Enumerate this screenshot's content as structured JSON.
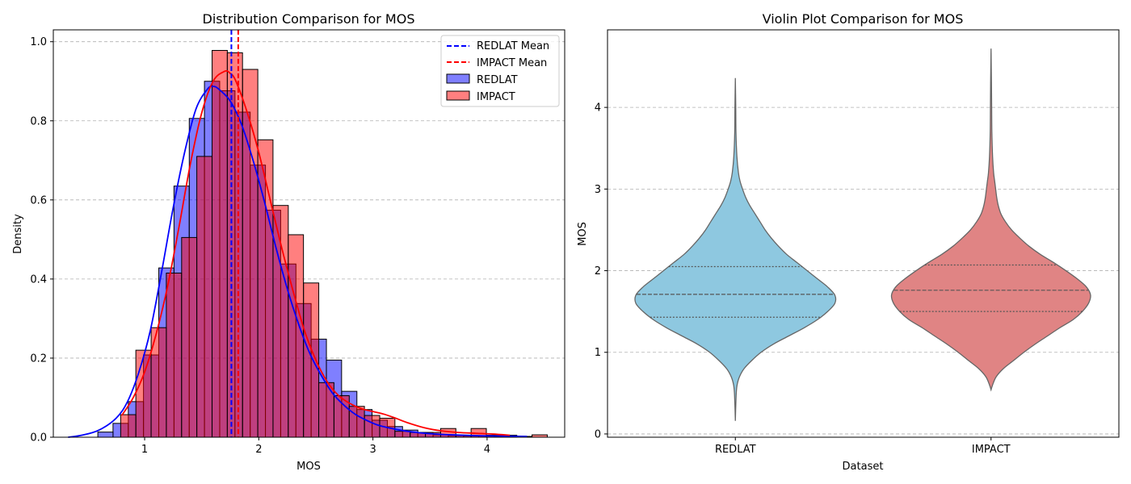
{
  "chart_data": [
    {
      "type": "histogram",
      "title": "Distribution Comparison for MOS",
      "xlabel": "MOS",
      "ylabel": "Density",
      "xlim": [
        0.2,
        4.68
      ],
      "ylim": [
        0,
        1.03
      ],
      "xticks": [
        1,
        2,
        3,
        4
      ],
      "yticks": [
        0.0,
        0.2,
        0.4,
        0.6,
        0.8,
        1.0
      ],
      "grid": "y-dashed",
      "legend_position": "top-right",
      "legend": [
        "REDLAT Mean",
        "IMPACT Mean",
        "REDLAT",
        "IMPACT"
      ],
      "series": [
        {
          "name": "REDLAT",
          "color": "#0000ff",
          "bin_width": 0.1335,
          "bins": [
            {
              "x0": 0.59,
              "density": 0.013
            },
            {
              "x0": 0.723,
              "density": 0.035
            },
            {
              "x0": 0.857,
              "density": 0.09
            },
            {
              "x0": 0.99,
              "density": 0.208
            },
            {
              "x0": 1.124,
              "density": 0.428
            },
            {
              "x0": 1.257,
              "density": 0.635
            },
            {
              "x0": 1.391,
              "density": 0.806
            },
            {
              "x0": 1.524,
              "density": 0.9
            },
            {
              "x0": 1.658,
              "density": 0.876
            },
            {
              "x0": 1.791,
              "density": 0.822
            },
            {
              "x0": 1.925,
              "density": 0.688
            },
            {
              "x0": 2.058,
              "density": 0.574
            },
            {
              "x0": 2.192,
              "density": 0.438
            },
            {
              "x0": 2.325,
              "density": 0.338
            },
            {
              "x0": 2.459,
              "density": 0.248
            },
            {
              "x0": 2.592,
              "density": 0.195
            },
            {
              "x0": 2.726,
              "density": 0.116
            },
            {
              "x0": 2.859,
              "density": 0.07
            },
            {
              "x0": 2.993,
              "density": 0.043
            },
            {
              "x0": 3.126,
              "density": 0.027
            },
            {
              "x0": 3.26,
              "density": 0.018
            },
            {
              "x0": 3.393,
              "density": 0.012
            },
            {
              "x0": 3.527,
              "density": 0.006
            },
            {
              "x0": 3.66,
              "density": 0.004
            },
            {
              "x0": 3.794,
              "density": 0.003
            },
            {
              "x0": 3.927,
              "density": 0.003
            },
            {
              "x0": 4.061,
              "density": 0.002
            },
            {
              "x0": 4.194,
              "density": 0.002
            }
          ],
          "kde": {
            "x": [
              0.33,
              0.45,
              0.6,
              0.75,
              0.85,
              0.95,
              1.05,
              1.15,
              1.25,
              1.35,
              1.45,
              1.55,
              1.6,
              1.65,
              1.75,
              1.85,
              1.95,
              2.05,
              2.15,
              2.25,
              2.35,
              2.45,
              2.55,
              2.65,
              2.75,
              2.85,
              2.95,
              3.05,
              3.2,
              3.35,
              3.5,
              3.7,
              3.9,
              4.1,
              4.35
            ],
            "y": [
              0.0,
              0.005,
              0.018,
              0.048,
              0.09,
              0.165,
              0.27,
              0.42,
              0.58,
              0.72,
              0.83,
              0.88,
              0.887,
              0.88,
              0.85,
              0.79,
              0.7,
              0.595,
              0.48,
              0.375,
              0.285,
              0.21,
              0.155,
              0.11,
              0.08,
              0.057,
              0.042,
              0.03,
              0.02,
              0.013,
              0.009,
              0.006,
              0.004,
              0.003,
              0.002
            ]
          },
          "mean": 1.76
        },
        {
          "name": "IMPACT",
          "color": "#ff0000",
          "bin_width": 0.1335,
          "bins": [
            {
              "x0": 0.79,
              "density": 0.057
            },
            {
              "x0": 0.923,
              "density": 0.22
            },
            {
              "x0": 1.057,
              "density": 0.277
            },
            {
              "x0": 1.19,
              "density": 0.415
            },
            {
              "x0": 1.324,
              "density": 0.505
            },
            {
              "x0": 1.457,
              "density": 0.71
            },
            {
              "x0": 1.591,
              "density": 0.978
            },
            {
              "x0": 1.724,
              "density": 0.972
            },
            {
              "x0": 1.858,
              "density": 0.93
            },
            {
              "x0": 1.991,
              "density": 0.752
            },
            {
              "x0": 2.125,
              "density": 0.586
            },
            {
              "x0": 2.258,
              "density": 0.512
            },
            {
              "x0": 2.392,
              "density": 0.39
            },
            {
              "x0": 2.525,
              "density": 0.138
            },
            {
              "x0": 2.659,
              "density": 0.105
            },
            {
              "x0": 2.792,
              "density": 0.078
            },
            {
              "x0": 2.926,
              "density": 0.055
            },
            {
              "x0": 3.059,
              "density": 0.048
            },
            {
              "x0": 3.193,
              "density": 0.015
            },
            {
              "x0": 3.326,
              "density": 0.012
            },
            {
              "x0": 3.46,
              "density": 0.012
            },
            {
              "x0": 3.593,
              "density": 0.022
            },
            {
              "x0": 3.727,
              "density": 0.005
            },
            {
              "x0": 3.86,
              "density": 0.022
            },
            {
              "x0": 3.994,
              "density": 0.005
            },
            {
              "x0": 4.127,
              "density": 0.005
            },
            {
              "x0": 4.261,
              "density": 0.002
            },
            {
              "x0": 4.394,
              "density": 0.006
            }
          ],
          "kde": {
            "x": [
              0.8,
              0.9,
              1.0,
              1.1,
              1.2,
              1.3,
              1.4,
              1.5,
              1.6,
              1.7,
              1.75,
              1.8,
              1.9,
              2.0,
              2.1,
              2.2,
              2.3,
              2.4,
              2.5,
              2.6,
              2.7,
              2.8,
              2.9,
              3.0,
              3.1,
              3.2,
              3.3,
              3.45,
              3.6,
              3.75,
              3.9,
              4.05,
              4.2
            ],
            "y": [
              0.055,
              0.1,
              0.165,
              0.26,
              0.38,
              0.53,
              0.69,
              0.82,
              0.9,
              0.925,
              0.92,
              0.9,
              0.82,
              0.72,
              0.6,
              0.48,
              0.37,
              0.27,
              0.195,
              0.14,
              0.105,
              0.085,
              0.072,
              0.065,
              0.058,
              0.048,
              0.037,
              0.024,
              0.016,
              0.012,
              0.01,
              0.008,
              0.005
            ]
          },
          "mean": 1.82
        }
      ]
    },
    {
      "type": "violin",
      "title": "Violin Plot Comparison for MOS",
      "xlabel": "Dataset",
      "ylabel": "MOS",
      "ylim": [
        -0.04,
        4.95
      ],
      "yticks": [
        0,
        1,
        2,
        3,
        4
      ],
      "categories": [
        "REDLAT",
        "IMPACT"
      ],
      "grid": "y-dashed",
      "violins": [
        {
          "name": "REDLAT",
          "color": "#8ec8e0",
          "quartiles": [
            1.43,
            1.71,
            2.05
          ],
          "profile": [
            [
              0.16,
              0.0
            ],
            [
              0.3,
              0.003
            ],
            [
              0.5,
              0.009
            ],
            [
              0.6,
              0.017
            ],
            [
              0.7,
              0.04
            ],
            [
              0.8,
              0.085
            ],
            [
              0.9,
              0.16
            ],
            [
              1.0,
              0.25
            ],
            [
              1.1,
              0.37
            ],
            [
              1.2,
              0.52
            ],
            [
              1.3,
              0.67
            ],
            [
              1.4,
              0.8
            ],
            [
              1.5,
              0.9
            ],
            [
              1.6,
              0.97
            ],
            [
              1.7,
              0.97
            ],
            [
              1.8,
              0.9
            ],
            [
              1.9,
              0.8
            ],
            [
              2.0,
              0.7
            ],
            [
              2.1,
              0.6
            ],
            [
              2.2,
              0.5
            ],
            [
              2.3,
              0.42
            ],
            [
              2.4,
              0.35
            ],
            [
              2.5,
              0.29
            ],
            [
              2.6,
              0.24
            ],
            [
              2.7,
              0.19
            ],
            [
              2.8,
              0.14
            ],
            [
              2.9,
              0.1
            ],
            [
              3.0,
              0.07
            ],
            [
              3.1,
              0.045
            ],
            [
              3.2,
              0.03
            ],
            [
              3.4,
              0.015
            ],
            [
              3.7,
              0.006
            ],
            [
              4.0,
              0.004
            ],
            [
              4.36,
              0.0
            ]
          ]
        },
        {
          "name": "IMPACT",
          "color": "#e08484",
          "quartiles": [
            1.5,
            1.76,
            2.07
          ],
          "profile": [
            [
              0.54,
              0.0
            ],
            [
              0.6,
              0.015
            ],
            [
              0.7,
              0.05
            ],
            [
              0.8,
              0.12
            ],
            [
              0.9,
              0.22
            ],
            [
              1.0,
              0.32
            ],
            [
              1.1,
              0.43
            ],
            [
              1.2,
              0.55
            ],
            [
              1.3,
              0.67
            ],
            [
              1.4,
              0.8
            ],
            [
              1.5,
              0.89
            ],
            [
              1.6,
              0.95
            ],
            [
              1.7,
              0.97
            ],
            [
              1.8,
              0.93
            ],
            [
              1.9,
              0.84
            ],
            [
              2.0,
              0.73
            ],
            [
              2.1,
              0.61
            ],
            [
              2.2,
              0.48
            ],
            [
              2.3,
              0.37
            ],
            [
              2.4,
              0.28
            ],
            [
              2.5,
              0.2
            ],
            [
              2.6,
              0.14
            ],
            [
              2.7,
              0.095
            ],
            [
              2.8,
              0.07
            ],
            [
              2.9,
              0.055
            ],
            [
              3.0,
              0.045
            ],
            [
              3.1,
              0.035
            ],
            [
              3.2,
              0.025
            ],
            [
              3.4,
              0.015
            ],
            [
              3.7,
              0.008
            ],
            [
              4.0,
              0.006
            ],
            [
              4.3,
              0.004
            ],
            [
              4.72,
              0.0
            ]
          ]
        }
      ]
    }
  ]
}
